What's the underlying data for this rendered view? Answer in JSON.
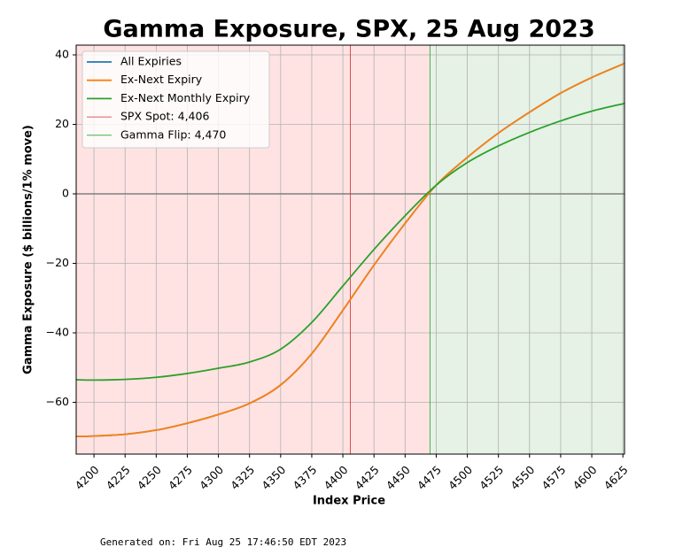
{
  "chart_data": {
    "type": "line",
    "title": "Gamma Exposure, SPX, 25 Aug 2023",
    "xlabel": "Index Price",
    "ylabel": "Gamma Exposure ($ billions/1% move)",
    "footnote": "Generated on: Fri Aug 25 17:46:50 EDT 2023",
    "x": [
      4186,
      4200,
      4225,
      4250,
      4275,
      4300,
      4325,
      4350,
      4375,
      4400,
      4425,
      4450,
      4475,
      4500,
      4525,
      4550,
      4575,
      4600,
      4626
    ],
    "series": [
      {
        "name": "All Expiries",
        "color": "#1f77b4",
        "values": [
          -69.8,
          -69.7,
          -69.2,
          -68,
          -66,
          -63.5,
          -60.3,
          -55,
          -46,
          -33.5,
          -20.5,
          -8.5,
          2.5,
          10.5,
          17.5,
          23.5,
          29,
          33.5,
          37.5
        ]
      },
      {
        "name": "Ex-Next Expiry",
        "color": "#ff7f0e",
        "values": [
          -69.8,
          -69.7,
          -69.2,
          -68,
          -66,
          -63.5,
          -60.3,
          -55,
          -46,
          -33.5,
          -20.5,
          -8.5,
          2.5,
          10.5,
          17.5,
          23.5,
          29,
          33.5,
          37.5
        ]
      },
      {
        "name": "Ex-Next Monthly Expiry",
        "color": "#2ca02c",
        "values": [
          -53.5,
          -53.6,
          -53.4,
          -52.8,
          -51.7,
          -50.2,
          -48.4,
          -44.7,
          -37,
          -26.5,
          -16,
          -6.3,
          2.5,
          9,
          13.8,
          17.7,
          21,
          23.8,
          26
        ]
      }
    ],
    "spot": {
      "value": 4406,
      "label": "SPX Spot: 4,406",
      "color": "#d62728"
    },
    "flip": {
      "value": 4470,
      "label": "Gamma Flip: 4,470",
      "color": "#2ca02c"
    },
    "xlim": [
      4185.7,
      4626.3
    ],
    "ylim": [
      -74.9,
      42.8
    ],
    "xticks": [
      4200,
      4225,
      4250,
      4275,
      4300,
      4325,
      4350,
      4375,
      4400,
      4425,
      4450,
      4475,
      4500,
      4525,
      4550,
      4575,
      4600,
      4625
    ],
    "yticks": [
      {
        "value": -60,
        "label": "−60"
      },
      {
        "value": -40,
        "label": "−40"
      },
      {
        "value": -20,
        "label": "−20"
      },
      0,
      20,
      40
    ],
    "grid": true,
    "legend": "upper-left"
  }
}
